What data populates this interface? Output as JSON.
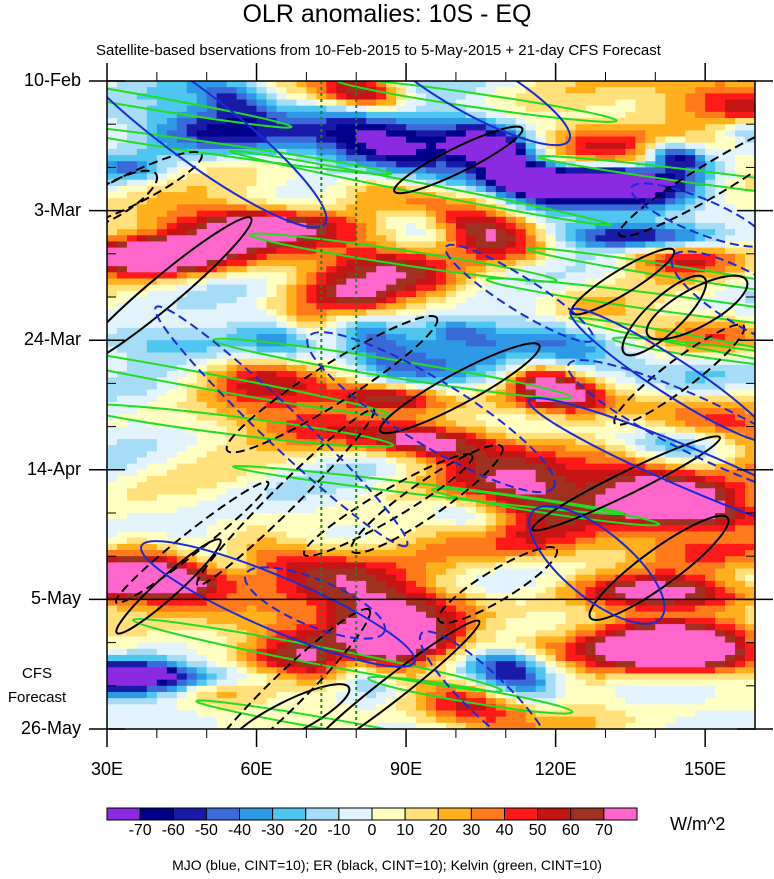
{
  "chart_data": {
    "type": "heatmap",
    "title": "OLR anomalies: 10S - EQ",
    "subtitle": "Satellite-based bservations from 10-Feb-2015 to 5-May-2015 + 21-day CFS Forecast",
    "x": {
      "ticks": [
        30,
        60,
        90,
        120,
        150
      ],
      "tick_labels": [
        "30E",
        "60E",
        "90E",
        "120E",
        "150E"
      ],
      "range": [
        30,
        160
      ]
    },
    "y": {
      "ticks": [
        0,
        21,
        42,
        63,
        84,
        105
      ],
      "tick_labels": [
        "10-Feb",
        "3-Mar",
        "24-Mar",
        "14-Apr",
        "5-May",
        "26-May"
      ],
      "range": [
        0,
        105
      ],
      "observation_end_day": 84
    },
    "forecast_label": [
      "CFS",
      "Forecast"
    ],
    "colorbar": {
      "unit": "W/m^2",
      "levels": [
        -70,
        -60,
        -50,
        -40,
        -30,
        -20,
        -10,
        0,
        10,
        20,
        30,
        40,
        50,
        60,
        70
      ],
      "level_labels": [
        "-70",
        "-60",
        "-50",
        "-40",
        "-30",
        "-20",
        "-10",
        "0",
        "10",
        "20",
        "30",
        "40",
        "50",
        "60",
        "70"
      ],
      "colors": [
        "#8a2be2",
        "#00008b",
        "#1a1aa8",
        "#3a6ad8",
        "#2e9ae6",
        "#4fc6f0",
        "#a6dcf5",
        "#e2f3fb",
        "#ffffc2",
        "#ffe07a",
        "#ffb01c",
        "#ff7a1a",
        "#ff1a1a",
        "#c41414",
        "#a03020",
        "#ff66cc"
      ]
    },
    "reference_lines_lon": [
      73,
      80
    ],
    "caption": "MJO (blue, CINT=10); ER (black, CINT=10); Kelvin (green, CINT=10)",
    "contours": {
      "mjo_color": "#1a2bd8",
      "er_color": "#000000",
      "kelvin_color": "#22dd22",
      "reference_line_color": "#1a8a1a"
    }
  }
}
